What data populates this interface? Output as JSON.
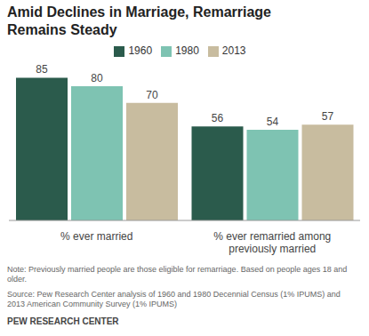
{
  "chart_data": {
    "type": "bar",
    "title": "Amid Declines in Marriage, Remarriage Remains Steady",
    "categories": [
      "% ever married",
      "% ever remarried among previously married"
    ],
    "series": [
      {
        "name": "1960",
        "color": "#2b5b4c",
        "values": [
          85,
          56
        ]
      },
      {
        "name": "1980",
        "color": "#7ec3b2",
        "values": [
          80,
          54
        ]
      },
      {
        "name": "2013",
        "color": "#c8bc9f",
        "values": [
          70,
          57
        ]
      }
    ],
    "ylim": [
      0,
      90
    ],
    "data_labels": true,
    "tick_labels": "x",
    "legend": "top",
    "note": "Note: Previously married people are those eligible for remarriage. Based on people ages 18 and older.",
    "source": "Source: Pew Research Center analysis of 1960 and 1980 Decennial Census (1% IPUMS) and 2013 American Community Survey (1% IPUMS)",
    "credit": "PEW RESEARCH CENTER"
  }
}
